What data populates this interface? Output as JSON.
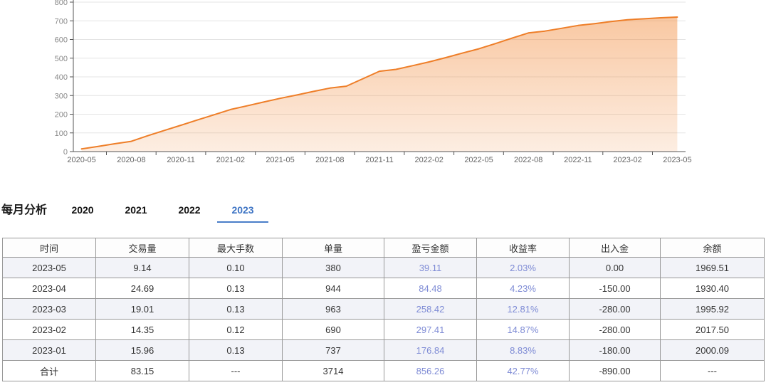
{
  "chart_data": {
    "type": "area",
    "title": "",
    "x": [
      "2020-05",
      "2020-06",
      "2020-07",
      "2020-08",
      "2020-09",
      "2020-10",
      "2020-11",
      "2020-12",
      "2021-01",
      "2021-02",
      "2021-03",
      "2021-04",
      "2021-05",
      "2021-06",
      "2021-07",
      "2021-08",
      "2021-09",
      "2021-10",
      "2021-11",
      "2021-12",
      "2022-01",
      "2022-02",
      "2022-03",
      "2022-04",
      "2022-05",
      "2022-06",
      "2022-07",
      "2022-08",
      "2022-09",
      "2022-10",
      "2022-11",
      "2022-12",
      "2023-01",
      "2023-02",
      "2023-03",
      "2023-04",
      "2023-05"
    ],
    "values": [
      14,
      28,
      42,
      55,
      85,
      113,
      141,
      169,
      197,
      225,
      245,
      265,
      285,
      303,
      322,
      340,
      350,
      390,
      430,
      440,
      460,
      480,
      503,
      527,
      550,
      578,
      607,
      635,
      645,
      660,
      675,
      685,
      696,
      706,
      711,
      716,
      720
    ],
    "x_label_every": 3,
    "x_tick_labels": [
      "2020-05",
      "2020-08",
      "2020-11",
      "2021-02",
      "2021-05",
      "2021-08",
      "2021-11",
      "2022-02",
      "2022-05",
      "2022-08",
      "2022-11",
      "2023-02",
      "2023-05"
    ],
    "ylim": [
      0,
      800
    ],
    "y_tick_step": 100,
    "grid": true,
    "legend": "none",
    "line_color": "#ee7e28",
    "fill_top": "rgba(242,135,52,0.50)",
    "fill_bottom": "rgba(240,138,60,0.15)",
    "grid_color": "#e4e4e4",
    "axis_color": "#555555",
    "label_color_x": "#666666",
    "label_color_y": "#888888"
  },
  "monthly": {
    "title": "每月分析",
    "tabs": [
      "2020",
      "2021",
      "2022",
      "2023"
    ],
    "active_tab": "2023",
    "active_color": "#3e74c4",
    "active_underline_color": "#4a7ec8"
  },
  "table": {
    "headers": [
      "时间",
      "交易量",
      "最大手数",
      "单量",
      "盈亏金额",
      "收益率",
      "出入金",
      "余额"
    ],
    "rows": [
      [
        "2023-05",
        "9.14",
        "0.10",
        "380",
        "39.11",
        "2.03%",
        "0.00",
        "1969.51"
      ],
      [
        "2023-04",
        "24.69",
        "0.13",
        "944",
        "84.48",
        "4.23%",
        "-150.00",
        "1930.40"
      ],
      [
        "2023-03",
        "19.01",
        "0.13",
        "963",
        "258.42",
        "12.81%",
        "-280.00",
        "1995.92"
      ],
      [
        "2023-02",
        "14.35",
        "0.12",
        "690",
        "297.41",
        "14.87%",
        "-280.00",
        "2017.50"
      ],
      [
        "2023-01",
        "15.96",
        "0.13",
        "737",
        "176.84",
        "8.83%",
        "-180.00",
        "2000.09"
      ],
      [
        "合计",
        "83.15",
        "---",
        "3714",
        "856.26",
        "42.77%",
        "-890.00",
        "---"
      ]
    ],
    "total_row_label": "合计",
    "blue_columns": [
      4,
      5
    ],
    "blue_color": "#7e8bd5"
  }
}
